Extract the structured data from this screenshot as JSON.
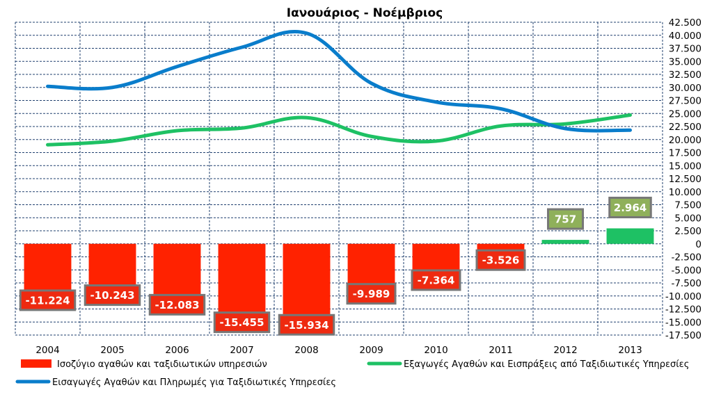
{
  "chart_data": {
    "type": "bar",
    "title": "Ιανουάριος - Νοέμβριος",
    "categories": [
      "2004",
      "2005",
      "2006",
      "2007",
      "2008",
      "2009",
      "2010",
      "2011",
      "2012",
      "2013"
    ],
    "ylim": [
      -17500,
      42500
    ],
    "ytick_step": 2500,
    "ytick_labels": [
      "42.500",
      "40.000",
      "37.500",
      "35.000",
      "32.500",
      "30.000",
      "27.500",
      "25.000",
      "22.500",
      "20.000",
      "17.500",
      "15.000",
      "12.500",
      "10.000",
      "7.500",
      "5.000",
      "2.500",
      "0",
      "-2.500",
      "-5.000",
      "-7.500",
      "-10.000",
      "-12.500",
      "-15.000",
      "-17.500"
    ],
    "series": [
      {
        "name": "Ισοζύγιο αγαθών και ταξιδιωτικών υπηρεσιών",
        "kind": "bar",
        "values": [
          -11224,
          -10243,
          -12083,
          -15455,
          -15934,
          -9989,
          -7364,
          -3526,
          757,
          2964
        ],
        "labels": [
          "-11.224",
          "-10.243",
          "-12.083",
          "-15.455",
          "-15.934",
          "-9.989",
          "-7.364",
          "-3.526",
          "757",
          "2.964"
        ]
      },
      {
        "name": "Εξαγωγές Αγαθών και Εισπράξεις από Ταξιδιωτικές Υπηρεσίες",
        "kind": "line",
        "values": [
          19000,
          19700,
          21700,
          22200,
          24200,
          20600,
          19700,
          22600,
          23000,
          24700
        ]
      },
      {
        "name": "Εισαγωγές Αγαθών και Πληρωμές για Ταξιδιωτικές Υπηρεσίες",
        "kind": "line",
        "values": [
          30200,
          30000,
          34000,
          37700,
          40400,
          30800,
          27200,
          25900,
          22100,
          21800
        ]
      }
    ],
    "colors": {
      "negative_bar": "#ff2200",
      "positive_bar": "#1ec164",
      "negative_label_bg": "#ee2a10",
      "positive_label_bg": "#8fb05a",
      "label_border": "#777777",
      "exports_line": "#1ec164",
      "imports_line": "#0a7dcb",
      "grid": "#1f3f6e"
    },
    "grid": true,
    "legend_position": "bottom"
  }
}
